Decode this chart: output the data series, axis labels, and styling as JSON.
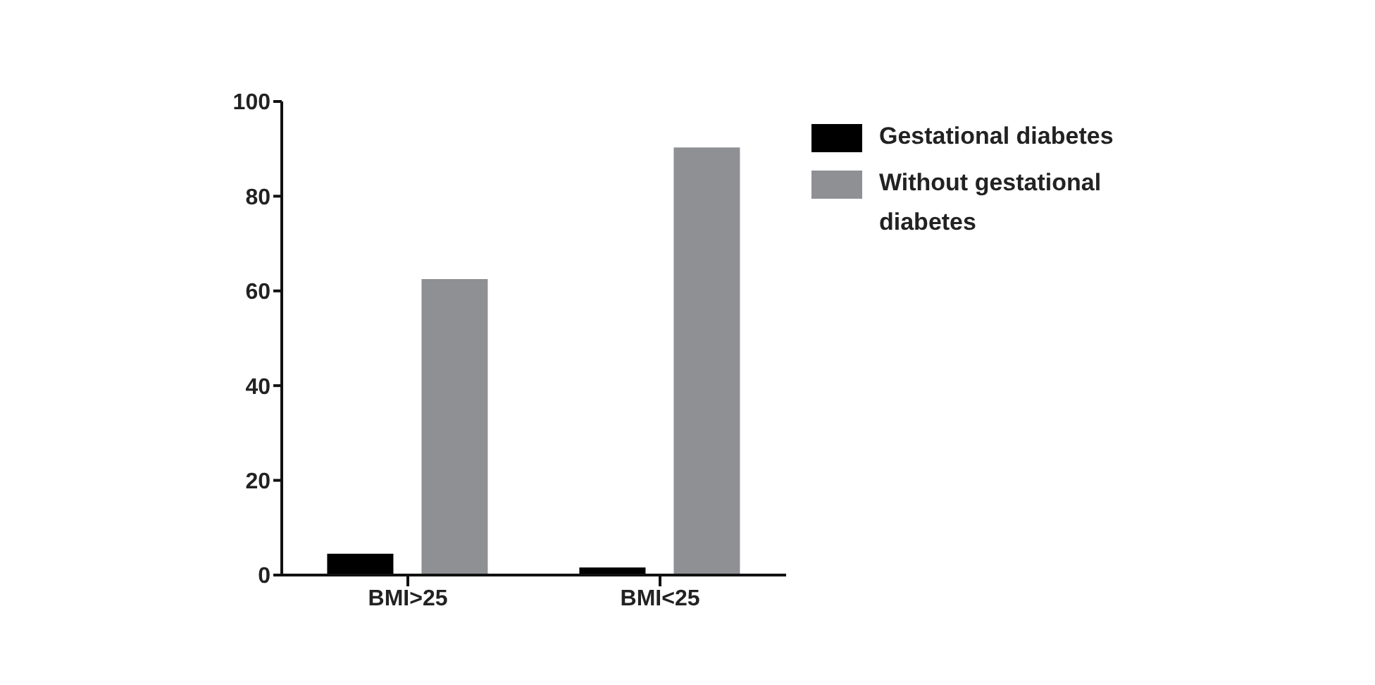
{
  "chart_data": {
    "type": "bar",
    "categories": [
      "BMI>25",
      "BMI<25"
    ],
    "series": [
      {
        "name": "Gestational diabetes",
        "color": "#000000",
        "values": [
          4.5,
          1.6
        ]
      },
      {
        "name": "Without gestational diabetes",
        "color": "#8e9094",
        "values": [
          62.5,
          90.3
        ]
      }
    ],
    "ylim": [
      0,
      100
    ],
    "yticks": [
      0,
      20,
      40,
      60,
      80,
      100
    ],
    "grid": false,
    "legend": "top right"
  }
}
